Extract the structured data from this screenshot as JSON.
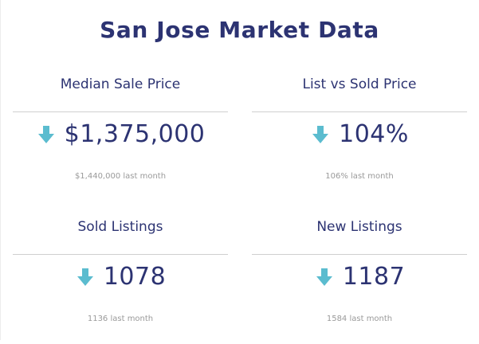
{
  "page": {
    "title": "San Jose Market Data"
  },
  "colors": {
    "title": "#2c3372",
    "value": "#2c3372",
    "arrow": "#5bbccf",
    "muted": "#9a9a9a",
    "divider": "#cfcfcf"
  },
  "cards": [
    {
      "label": "Median Sale Price",
      "icon": "arrow-down-icon",
      "value": "$1,375,000",
      "previous": "$1,440,000 last month"
    },
    {
      "label": "List vs Sold Price",
      "icon": "arrow-down-icon",
      "value": "104%",
      "previous": "106% last month"
    },
    {
      "label": "Sold Listings",
      "icon": "arrow-down-icon",
      "value": "1078",
      "previous": "1136 last month"
    },
    {
      "label": "New Listings",
      "icon": "arrow-down-icon",
      "value": "1187",
      "previous": "1584 last month"
    }
  ]
}
